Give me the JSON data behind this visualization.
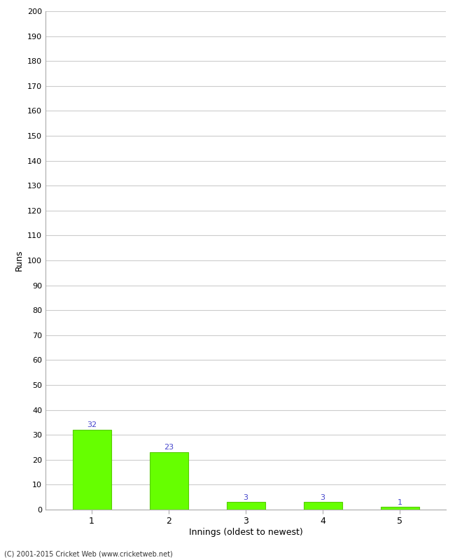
{
  "categories": [
    1,
    2,
    3,
    4,
    5
  ],
  "values": [
    32,
    23,
    3,
    3,
    1
  ],
  "bar_color": "#66ff00",
  "bar_edge_color": "#55cc00",
  "ylabel": "Runs",
  "xlabel": "Innings (oldest to newest)",
  "ylim": [
    0,
    200
  ],
  "yticks": [
    0,
    10,
    20,
    30,
    40,
    50,
    60,
    70,
    80,
    90,
    100,
    110,
    120,
    130,
    140,
    150,
    160,
    170,
    180,
    190,
    200
  ],
  "footnote": "(C) 2001-2015 Cricket Web (www.cricketweb.net)",
  "label_color": "#4444cc",
  "background_color": "#ffffff",
  "grid_color": "#cccccc",
  "bar_width": 0.5
}
